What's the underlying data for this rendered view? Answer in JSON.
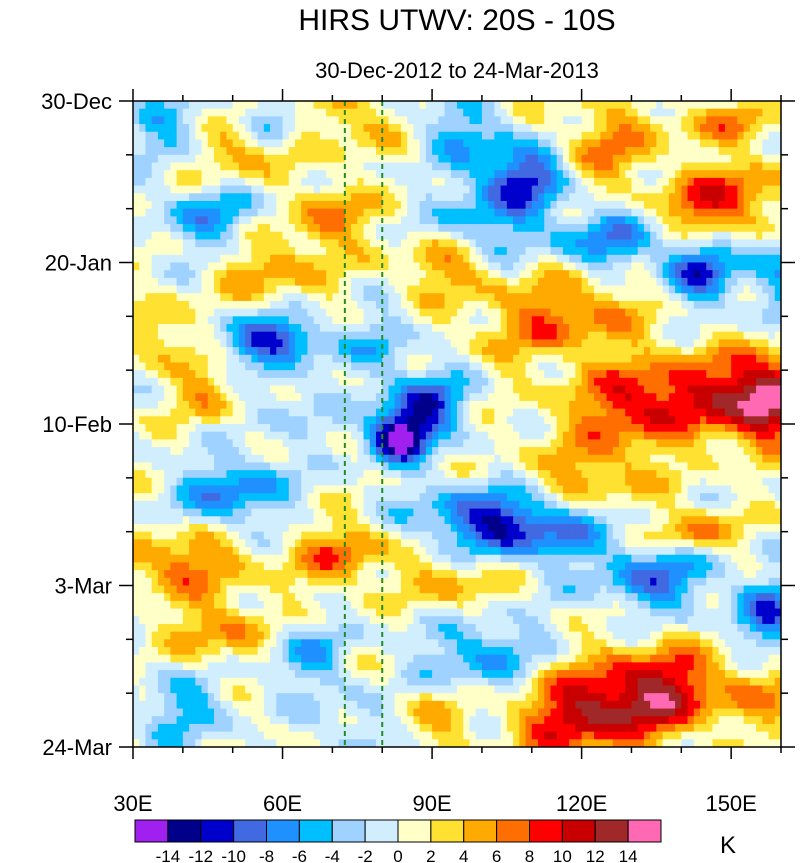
{
  "chart_data": {
    "type": "heatmap",
    "title": "HIRS UTWV: 20S - 10S",
    "subtitle": "30-Dec-2012 to 24-Mar-2013",
    "xlabel": "",
    "ylabel": "",
    "x_axis": {
      "range": [
        30,
        160
      ],
      "ticks": [
        {
          "value": 30,
          "label": "30E"
        },
        {
          "value": 60,
          "label": "60E"
        },
        {
          "value": 90,
          "label": "90E"
        },
        {
          "value": 120,
          "label": "120E"
        },
        {
          "value": 150,
          "label": "150E"
        }
      ],
      "minor_step": 10
    },
    "y_axis": {
      "range_days": [
        0,
        84
      ],
      "direction": "top-to-bottom",
      "ticks": [
        {
          "value": 0,
          "label": "30-Dec"
        },
        {
          "value": 21,
          "label": "20-Jan"
        },
        {
          "value": 42,
          "label": "10-Feb"
        },
        {
          "value": 63,
          "label": "3-Mar"
        },
        {
          "value": 84,
          "label": "24-Mar"
        }
      ],
      "minor_step_days": 7
    },
    "reference_lines_lon": [
      72.5,
      80
    ],
    "colorbar": {
      "unit": "K",
      "levels": [
        -14,
        -12,
        -10,
        -8,
        -6,
        -4,
        -2,
        0,
        2,
        4,
        6,
        8,
        10,
        12,
        14
      ],
      "tick_labels": [
        "-14",
        "-12",
        "-10",
        "-8",
        "-6",
        "-4",
        "-2",
        "0",
        "2",
        "4",
        "6",
        "8",
        "10",
        "12",
        "14"
      ],
      "colors": [
        "#a020f0",
        "#00008b",
        "#0000cd",
        "#4169e1",
        "#1e90ff",
        "#00bfff",
        "#a0d2ff",
        "#d1eeff",
        "#ffffc8",
        "#ffe132",
        "#ffaa00",
        "#ff6e00",
        "#ff0000",
        "#c80000",
        "#a02828",
        "#ff69b4"
      ]
    },
    "anomaly_features": [
      {
        "lon": 52,
        "day": 6,
        "amp": 6,
        "slon": 8,
        "sday": 3,
        "tilt": -0.6
      },
      {
        "lon": 38,
        "day": 4,
        "amp": -5,
        "slon": 6,
        "sday": 3,
        "tilt": 0
      },
      {
        "lon": 58,
        "day": 3,
        "amp": -7,
        "slon": 4,
        "sday": 2,
        "tilt": 0
      },
      {
        "lon": 77,
        "day": 3,
        "amp": 5,
        "slon": 6,
        "sday": 3,
        "tilt": 0
      },
      {
        "lon": 108,
        "day": 10,
        "amp": -12,
        "slon": 6,
        "sday": 3,
        "tilt": -0.4
      },
      {
        "lon": 95,
        "day": 4,
        "amp": -5,
        "slon": 7,
        "sday": 3,
        "tilt": 0
      },
      {
        "lon": 148,
        "day": 13,
        "amp": 10,
        "slon": 8,
        "sday": 3,
        "tilt": -0.5
      },
      {
        "lon": 125,
        "day": 6,
        "amp": 6,
        "slon": 8,
        "sday": 4,
        "tilt": 0
      },
      {
        "lon": 150,
        "day": 3,
        "amp": 5,
        "slon": 8,
        "sday": 2,
        "tilt": 0
      },
      {
        "lon": 70,
        "day": 15,
        "amp": 7,
        "slon": 5,
        "sday": 3,
        "tilt": -0.4
      },
      {
        "lon": 45,
        "day": 15,
        "amp": -6,
        "slon": 7,
        "sday": 3,
        "tilt": 0
      },
      {
        "lon": 100,
        "day": 17,
        "amp": -6,
        "slon": 7,
        "sday": 3,
        "tilt": 0
      },
      {
        "lon": 125,
        "day": 18,
        "amp": -8,
        "slon": 7,
        "sday": 3,
        "tilt": 0
      },
      {
        "lon": 143,
        "day": 22,
        "amp": -10,
        "slon": 5,
        "sday": 3,
        "tilt": 0
      },
      {
        "lon": 160,
        "day": 23,
        "amp": -6,
        "slon": 5,
        "sday": 4,
        "tilt": 0
      },
      {
        "lon": 58,
        "day": 22,
        "amp": 5,
        "slon": 8,
        "sday": 3,
        "tilt": 0
      },
      {
        "lon": 93,
        "day": 21,
        "amp": 6,
        "slon": 7,
        "sday": 3,
        "tilt": 0
      },
      {
        "lon": 116,
        "day": 28,
        "amp": 7,
        "slon": 12,
        "sday": 4,
        "tilt": -0.3
      },
      {
        "lon": 135,
        "day": 39,
        "amp": 11,
        "slon": 12,
        "sday": 4,
        "tilt": -0.3
      },
      {
        "lon": 157,
        "day": 39,
        "amp": 15,
        "slon": 6,
        "sday": 4,
        "tilt": 0
      },
      {
        "lon": 58,
        "day": 31,
        "amp": -11,
        "slon": 7,
        "sday": 2,
        "tilt": 0
      },
      {
        "lon": 80,
        "day": 32,
        "amp": -4,
        "slon": 5,
        "sday": 3,
        "tilt": 0
      },
      {
        "lon": 88,
        "day": 40,
        "amp": -11,
        "slon": 6,
        "sday": 3,
        "tilt": -0.5
      },
      {
        "lon": 83,
        "day": 44,
        "amp": -13,
        "slon": 4,
        "sday": 2,
        "tilt": 0
      },
      {
        "lon": 35,
        "day": 30,
        "amp": 5,
        "slon": 5,
        "sday": 3,
        "tilt": 0
      },
      {
        "lon": 45,
        "day": 38,
        "amp": 5,
        "slon": 5,
        "sday": 3,
        "tilt": 0
      },
      {
        "lon": 60,
        "day": 39,
        "amp": -3,
        "slon": 6,
        "sday": 3,
        "tilt": 0
      },
      {
        "lon": 50,
        "day": 51,
        "amp": -8,
        "slon": 7,
        "sday": 3,
        "tilt": -0.3
      },
      {
        "lon": 105,
        "day": 55,
        "amp": -12,
        "slon": 12,
        "sday": 3,
        "tilt": 0.2
      },
      {
        "lon": 142,
        "day": 56,
        "amp": 7,
        "slon": 6,
        "sday": 2,
        "tilt": -0.3
      },
      {
        "lon": 122,
        "day": 49,
        "amp": 5,
        "slon": 10,
        "sday": 3,
        "tilt": 0
      },
      {
        "lon": 40,
        "day": 60,
        "amp": 7,
        "slon": 9,
        "sday": 3,
        "tilt": 0
      },
      {
        "lon": 72,
        "day": 59,
        "amp": 7,
        "slon": 7,
        "sday": 3,
        "tilt": -0.4
      },
      {
        "lon": 95,
        "day": 63,
        "amp": 5,
        "slon": 7,
        "sday": 3,
        "tilt": 0
      },
      {
        "lon": 135,
        "day": 62,
        "amp": -8,
        "slon": 8,
        "sday": 3,
        "tilt": 0
      },
      {
        "lon": 158,
        "day": 67,
        "amp": -9,
        "slon": 5,
        "sday": 3,
        "tilt": 0
      },
      {
        "lon": 48,
        "day": 69,
        "amp": 6,
        "slon": 7,
        "sday": 3,
        "tilt": 0
      },
      {
        "lon": 64,
        "day": 72,
        "amp": -5,
        "slon": 6,
        "sday": 3,
        "tilt": 0
      },
      {
        "lon": 100,
        "day": 72,
        "amp": -6,
        "slon": 8,
        "sday": 4,
        "tilt": 0
      },
      {
        "lon": 135,
        "day": 77,
        "amp": 12,
        "slon": 10,
        "sday": 4,
        "tilt": -0.2
      },
      {
        "lon": 118,
        "day": 80,
        "amp": 9,
        "slon": 9,
        "sday": 4,
        "tilt": 0
      },
      {
        "lon": 158,
        "day": 78,
        "amp": 4,
        "slon": 6,
        "sday": 3,
        "tilt": 0
      },
      {
        "lon": 40,
        "day": 79,
        "amp": -5,
        "slon": 6,
        "sday": 3,
        "tilt": 0
      },
      {
        "lon": 75,
        "day": 81,
        "amp": -3,
        "slon": 6,
        "sday": 3,
        "tilt": 0
      },
      {
        "lon": 90,
        "day": 80,
        "amp": 4,
        "slon": 6,
        "sday": 3,
        "tilt": 0
      }
    ]
  }
}
